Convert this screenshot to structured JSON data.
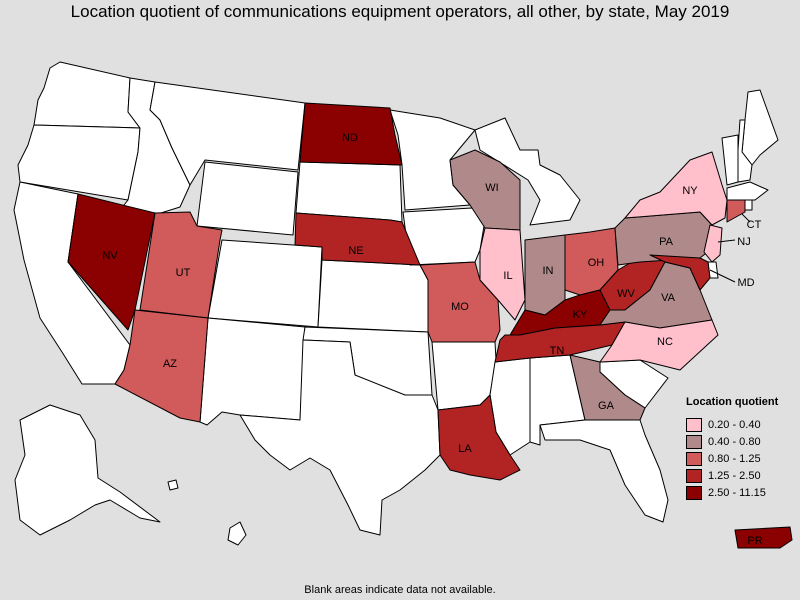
{
  "title": "Location quotient of communications equipment operators, all other, by state, May 2019",
  "footnote": "Blank areas indicate data not available.",
  "legend": {
    "title": "Location quotient",
    "classes": [
      {
        "label": "0.20 - 0.40",
        "color": "#ffc0cb"
      },
      {
        "label": "0.40 - 0.80",
        "color": "#b08a8a"
      },
      {
        "label": "0.80 - 1.25",
        "color": "#d15a5a"
      },
      {
        "label": "1.25 - 2.50",
        "color": "#b22424"
      },
      {
        "label": "2.50 - 11.15",
        "color": "#8b0000"
      }
    ]
  },
  "colors": {
    "no_data": "#ffffff",
    "background": "#e0e0e0",
    "border": "#000000"
  },
  "states": {
    "ND": {
      "label": "ND",
      "class": 4
    },
    "NV": {
      "label": "NV",
      "class": 4
    },
    "KY": {
      "label": "KY",
      "class": 4
    },
    "PR": {
      "label": "PR",
      "class": 4
    },
    "NE": {
      "label": "NE",
      "class": 3
    },
    "LA": {
      "label": "LA",
      "class": 3
    },
    "TN": {
      "label": "TN",
      "class": 3
    },
    "WV": {
      "label": "WV",
      "class": 3
    },
    "MD": {
      "label": "MD",
      "class": 3
    },
    "UT": {
      "label": "UT",
      "class": 2
    },
    "AZ": {
      "label": "AZ",
      "class": 2
    },
    "MO": {
      "label": "MO",
      "class": 2
    },
    "OH": {
      "label": "OH",
      "class": 2
    },
    "CT": {
      "label": "CT",
      "class": 2
    },
    "WI": {
      "label": "WI",
      "class": 1
    },
    "IN": {
      "label": "IN",
      "class": 1
    },
    "PA": {
      "label": "PA",
      "class": 1
    },
    "VA": {
      "label": "VA",
      "class": 1
    },
    "GA": {
      "label": "GA",
      "class": 1
    },
    "IL": {
      "label": "IL",
      "class": 0
    },
    "NY": {
      "label": "NY",
      "class": 0
    },
    "NC": {
      "label": "NC",
      "class": 0
    },
    "NJ": {
      "label": "NJ",
      "class": 0
    }
  }
}
